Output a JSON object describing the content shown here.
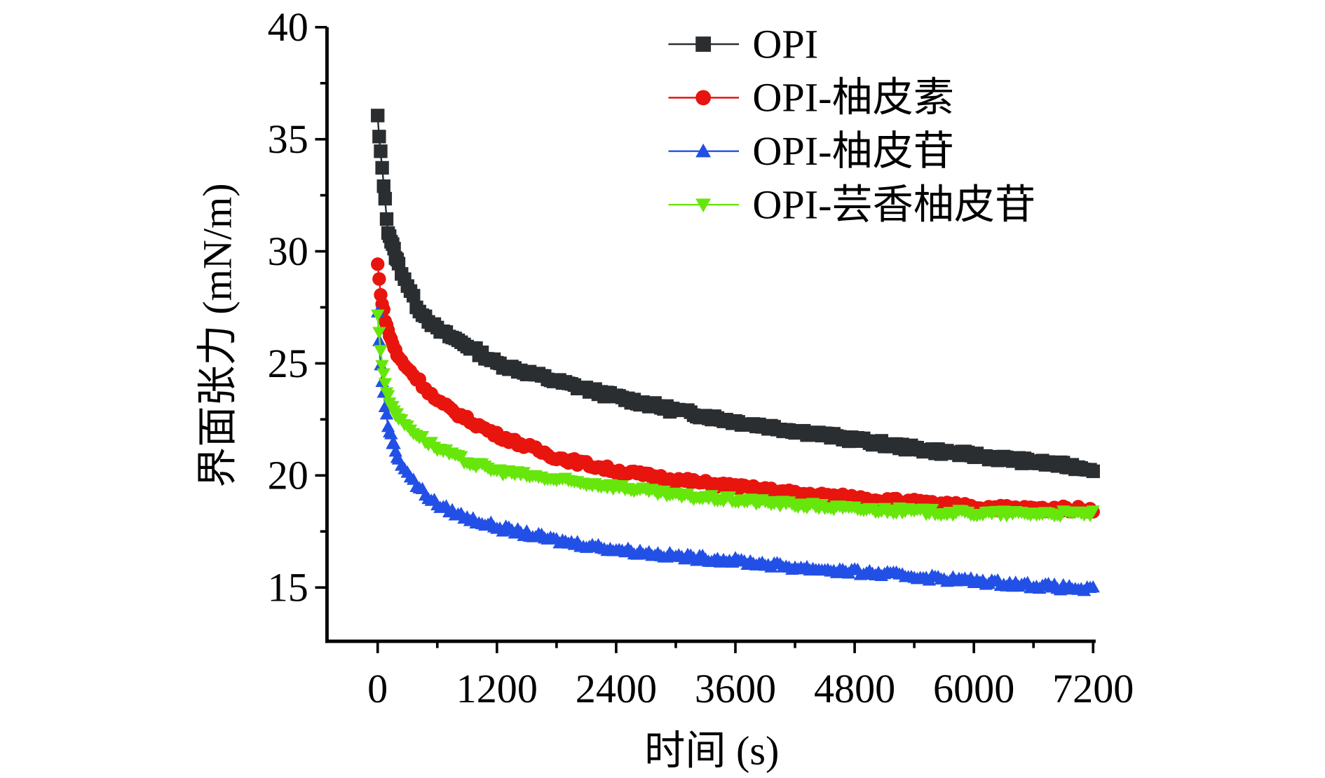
{
  "chart_data": {
    "type": "line",
    "title": "",
    "xlabel": "时间 (s)",
    "ylabel": "界面张力 (mN/m)",
    "xlim": [
      -510,
      7200
    ],
    "ylim": [
      12.6,
      40
    ],
    "xticks": [
      0,
      1200,
      2400,
      3600,
      4800,
      6000,
      7200
    ],
    "xtick_labels": [
      "0",
      "1200",
      "2400",
      "3600",
      "4800",
      "6000",
      "7200"
    ],
    "yticks": [
      15,
      20,
      25,
      30,
      35,
      40
    ],
    "ytick_labels": [
      "15",
      "20",
      "25",
      "30",
      "35",
      "40"
    ],
    "grid": false,
    "legend_position": "top-right",
    "x": [
      0,
      20,
      50,
      100,
      200,
      400,
      600,
      900,
      1200,
      1800,
      2400,
      3000,
      3600,
      4200,
      4800,
      5400,
      6000,
      6600,
      7200
    ],
    "series": [
      {
        "name": "OPI",
        "color": "#2b2e31",
        "marker": "square",
        "values": [
          36.0,
          34.8,
          33.5,
          31.0,
          29.5,
          27.5,
          26.5,
          25.8,
          25.0,
          24.2,
          23.5,
          22.9,
          22.4,
          22.0,
          21.6,
          21.2,
          20.9,
          20.6,
          20.3
        ]
      },
      {
        "name": "OPI-柚皮素",
        "color": "#e8140e",
        "marker": "circle",
        "values": [
          29.4,
          28.5,
          27.5,
          26.5,
          25.3,
          24.3,
          23.3,
          22.5,
          21.8,
          20.8,
          20.2,
          19.8,
          19.5,
          19.2,
          19.0,
          18.8,
          18.6,
          18.5,
          18.5
        ]
      },
      {
        "name": "OPI-柚皮苷",
        "color": "#2250e6",
        "marker": "triangle-up",
        "values": [
          27.3,
          25.5,
          24.0,
          22.3,
          20.8,
          19.5,
          18.7,
          18.1,
          17.7,
          17.1,
          16.7,
          16.4,
          16.2,
          15.9,
          15.7,
          15.5,
          15.3,
          15.1,
          14.9
        ]
      },
      {
        "name": "OPI-芸香柚皮苷",
        "color": "#66e60a",
        "marker": "triangle-down",
        "values": [
          27.2,
          26.0,
          24.8,
          23.5,
          22.6,
          21.8,
          21.2,
          20.6,
          20.2,
          19.8,
          19.5,
          19.1,
          18.9,
          18.7,
          18.5,
          18.4,
          18.3,
          18.3,
          18.3
        ]
      }
    ]
  }
}
